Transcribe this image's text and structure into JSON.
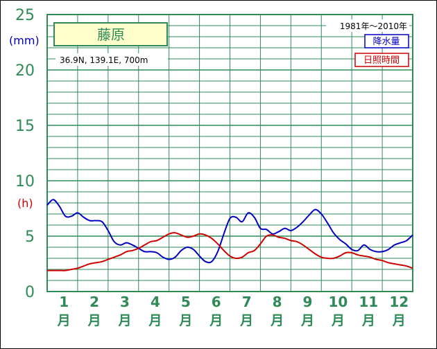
{
  "chart_data": {
    "type": "line",
    "station": "藤原",
    "location": "36.9N,  139.1E,  700m",
    "period": "1981年〜2010年",
    "y_unit_precip": "(mm)",
    "y_unit_sun": "(h)",
    "ylim": [
      0,
      25
    ],
    "y_ticks": [
      "0",
      "5",
      "10",
      "15",
      "20",
      "25"
    ],
    "months": [
      {
        "num": "1",
        "kanji": "月"
      },
      {
        "num": "2",
        "kanji": "月"
      },
      {
        "num": "3",
        "kanji": "月"
      },
      {
        "num": "4",
        "kanji": "月"
      },
      {
        "num": "5",
        "kanji": "月"
      },
      {
        "num": "6",
        "kanji": "月"
      },
      {
        "num": "7",
        "kanji": "月"
      },
      {
        "num": "8",
        "kanji": "月"
      },
      {
        "num": "9",
        "kanji": "月"
      },
      {
        "num": "10",
        "kanji": "月"
      },
      {
        "num": "11",
        "kanji": "月"
      },
      {
        "num": "12",
        "kanji": "月"
      }
    ],
    "grid": true,
    "series": [
      {
        "name": "降水量",
        "color": "#0000c0",
        "x": [
          0.0,
          0.2,
          0.4,
          0.6,
          0.8,
          1.0,
          1.2,
          1.4,
          1.6,
          1.8,
          2.0,
          2.2,
          2.4,
          2.6,
          2.8,
          3.0,
          3.2,
          3.4,
          3.6,
          3.8,
          4.0,
          4.2,
          4.4,
          4.6,
          4.8,
          5.0,
          5.2,
          5.4,
          5.6,
          5.8,
          6.0,
          6.2,
          6.4,
          6.6,
          6.8,
          7.0,
          7.2,
          7.4,
          7.6,
          7.8,
          8.0,
          8.2,
          8.4,
          8.6,
          8.8,
          9.0,
          9.2,
          9.4,
          9.6,
          9.8,
          10.0,
          10.2,
          10.4,
          10.6,
          10.8,
          11.0,
          11.2,
          11.4,
          11.6,
          11.8,
          12.0
        ],
        "values": [
          7.8,
          8.3,
          7.7,
          6.8,
          6.8,
          7.1,
          6.7,
          6.4,
          6.4,
          6.3,
          5.5,
          4.5,
          4.2,
          4.4,
          4.2,
          3.9,
          3.6,
          3.6,
          3.5,
          3.1,
          2.9,
          3.1,
          3.7,
          4.0,
          3.8,
          3.2,
          2.7,
          2.7,
          3.6,
          5.2,
          6.6,
          6.7,
          6.3,
          7.1,
          6.7,
          5.7,
          5.6,
          5.2,
          5.4,
          5.7,
          5.5,
          5.8,
          6.3,
          6.9,
          7.4,
          7.0,
          6.2,
          5.3,
          4.7,
          4.3,
          3.8,
          3.7,
          4.2,
          3.8,
          3.6,
          3.6,
          3.8,
          4.2,
          4.4,
          4.6,
          5.1
        ]
      },
      {
        "name": "日照時間",
        "color": "#cc0000",
        "x": [
          0.0,
          0.2,
          0.4,
          0.6,
          0.8,
          1.0,
          1.2,
          1.4,
          1.6,
          1.8,
          2.0,
          2.2,
          2.4,
          2.6,
          2.8,
          3.0,
          3.2,
          3.4,
          3.6,
          3.8,
          4.0,
          4.2,
          4.4,
          4.6,
          4.8,
          5.0,
          5.2,
          5.4,
          5.6,
          5.8,
          6.0,
          6.2,
          6.4,
          6.6,
          6.8,
          7.0,
          7.2,
          7.4,
          7.6,
          7.8,
          8.0,
          8.2,
          8.4,
          8.6,
          8.8,
          9.0,
          9.2,
          9.4,
          9.6,
          9.8,
          10.0,
          10.2,
          10.4,
          10.6,
          10.8,
          11.0,
          11.2,
          11.4,
          11.6,
          11.8,
          12.0
        ],
        "values": [
          1.9,
          1.9,
          1.9,
          1.9,
          2.0,
          2.1,
          2.3,
          2.5,
          2.6,
          2.7,
          2.9,
          3.1,
          3.3,
          3.6,
          3.7,
          3.9,
          4.2,
          4.5,
          4.6,
          4.9,
          5.2,
          5.3,
          5.1,
          4.9,
          5.0,
          5.2,
          5.1,
          4.8,
          4.3,
          3.7,
          3.2,
          3.0,
          3.1,
          3.5,
          3.7,
          4.3,
          5.0,
          5.1,
          4.9,
          4.8,
          4.6,
          4.5,
          4.2,
          3.8,
          3.4,
          3.1,
          3.0,
          3.0,
          3.2,
          3.5,
          3.5,
          3.3,
          3.2,
          3.1,
          2.9,
          2.8,
          2.6,
          2.5,
          2.4,
          2.3,
          2.1
        ]
      }
    ]
  }
}
